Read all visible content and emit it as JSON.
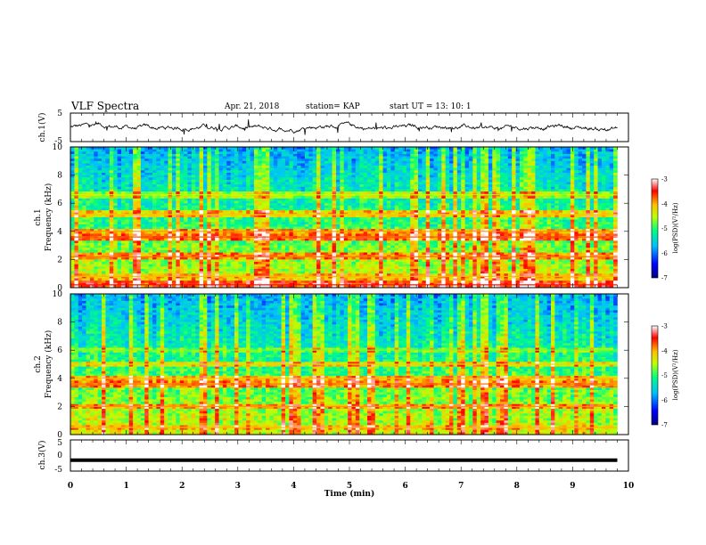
{
  "header": {
    "title": "VLF Spectra",
    "date": "Apr. 21, 2018",
    "station": "station= KAP",
    "start_time": "start  UT =  13: 10: 1"
  },
  "chart_data": [
    {
      "type": "line",
      "panel": "ch1-waveform",
      "ylabel": "ch.1(V)",
      "ylim": [
        -5,
        5
      ],
      "yticks": [
        "5",
        "-5"
      ],
      "xlim": [
        0,
        10
      ],
      "color": "#000000",
      "description_of_signal": "noisy trace oscillating around 0 V with amplitude about 2 V from t=0 to about 9.8 min"
    },
    {
      "type": "heatmap",
      "panel": "ch1-spectrogram",
      "ylabel": "ch.1\nFrequency (kHz)",
      "ylabel_line1": "ch.1",
      "ylabel_line2": "Frequency (kHz)",
      "ylim": [
        0,
        10
      ],
      "yticks": [
        "0",
        "2",
        "4",
        "6",
        "8",
        "10"
      ],
      "xlim": [
        0,
        9.8
      ],
      "colorbar": {
        "label": "log(PSD)(V²/Hz)",
        "range": [
          -7,
          -3
        ],
        "ticks": [
          "-3",
          "-4",
          "-5",
          "-6",
          "-7"
        ],
        "colormap": [
          "#00007f",
          "#0000ff",
          "#00bfff",
          "#00ff7f",
          "#bfff00",
          "#ffbf00",
          "#ff0000",
          "#ffffff"
        ]
      },
      "bands_khz": [
        {
          "f": 0.2,
          "level": -4.0
        },
        {
          "f": 0.8,
          "level": -4.5
        },
        {
          "f": 2.2,
          "level": -4.3
        },
        {
          "f": 3.6,
          "level": -4.2
        },
        {
          "f": 4.0,
          "level": -4.4
        },
        {
          "f": 5.2,
          "level": -4.6
        },
        {
          "f": 6.6,
          "level": -5.0
        }
      ]
    },
    {
      "type": "heatmap",
      "panel": "ch2-spectrogram",
      "ylabel": "ch.2\nFrequency (kHz)",
      "ylabel_line1": "ch.2",
      "ylabel_line2": "Frequency (kHz)",
      "ylim": [
        0,
        10
      ],
      "yticks": [
        "0",
        "2",
        "4",
        "6",
        "8",
        "10"
      ],
      "xlim": [
        0,
        9.8
      ],
      "colorbar": {
        "label": "log(PSD)(V²/Hz)",
        "range": [
          -7,
          -3
        ],
        "ticks": [
          "-3",
          "-4",
          "-5",
          "-6",
          "-7"
        ],
        "colormap": [
          "#00007f",
          "#0000ff",
          "#00bfff",
          "#00ff7f",
          "#bfff00",
          "#ffbf00",
          "#ff0000",
          "#ffffff"
        ]
      },
      "bands_khz": [
        {
          "f": 0.5,
          "level": -4.5
        },
        {
          "f": 2.0,
          "level": -4.4
        },
        {
          "f": 3.6,
          "level": -4.3
        },
        {
          "f": 4.0,
          "level": -4.5
        },
        {
          "f": 5.0,
          "level": -4.7
        },
        {
          "f": 6.0,
          "level": -5.2
        }
      ]
    },
    {
      "type": "line",
      "panel": "ch3-waveform",
      "ylabel": "ch.3(V)",
      "ylim": [
        -5,
        5
      ],
      "yticks": [
        "5",
        "0",
        "-5"
      ],
      "xlim": [
        0,
        10
      ],
      "x": [
        0,
        9.8
      ],
      "y": [
        -1.5,
        -1.5
      ],
      "color": "#000000"
    }
  ],
  "xaxis": {
    "label": "Time (min)",
    "ticks": [
      "0",
      "1",
      "2",
      "3",
      "4",
      "5",
      "6",
      "7",
      "8",
      "9",
      "10"
    ],
    "range": [
      0,
      10
    ]
  }
}
